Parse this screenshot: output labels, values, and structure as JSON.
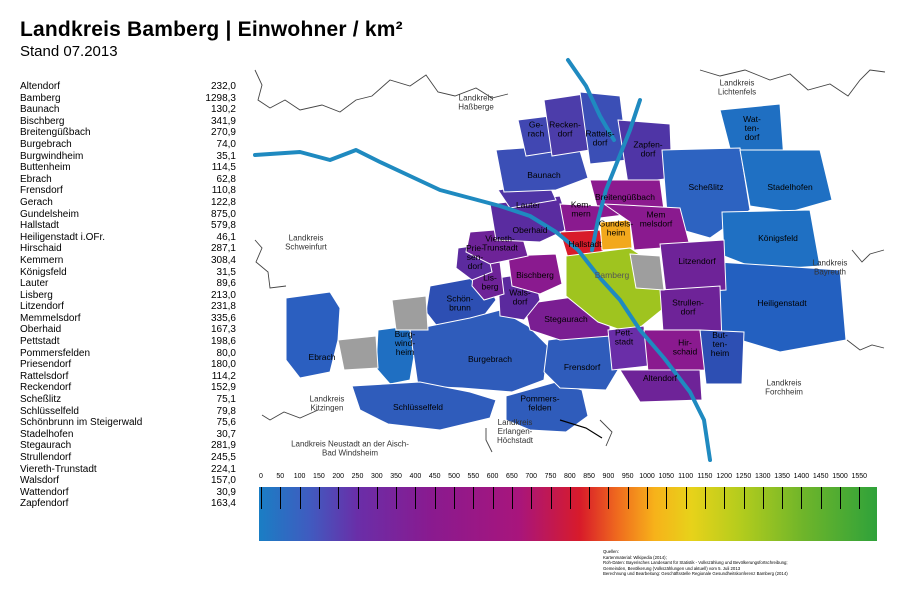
{
  "title": "Landkreis Bamberg  |  Einwohner / km²",
  "subtitle": "Stand 07.2013",
  "municipalities": [
    {
      "name": "Altendorf",
      "value": "232,0"
    },
    {
      "name": "Bamberg",
      "value": "1298,3"
    },
    {
      "name": "Baunach",
      "value": "130,2"
    },
    {
      "name": "Bischberg",
      "value": "341,9"
    },
    {
      "name": "Breitengüßbach",
      "value": "270,9"
    },
    {
      "name": "Burgebrach",
      "value": "74,0"
    },
    {
      "name": "Burgwindheim",
      "value": "35,1"
    },
    {
      "name": "Buttenheim",
      "value": "114,5"
    },
    {
      "name": "Ebrach",
      "value": "62,8"
    },
    {
      "name": "Frensdorf",
      "value": "110,8"
    },
    {
      "name": "Gerach",
      "value": "122,8"
    },
    {
      "name": "Gundelsheim",
      "value": "875,0"
    },
    {
      "name": "Hallstadt",
      "value": "579,8"
    },
    {
      "name": "Heiligenstadt i.OFr.",
      "value": "46,1"
    },
    {
      "name": "Hirschaid",
      "value": "287,1"
    },
    {
      "name": "Kemmern",
      "value": "308,4"
    },
    {
      "name": "Königsfeld",
      "value": "31,5"
    },
    {
      "name": "Lauter",
      "value": "89,6"
    },
    {
      "name": "Lisberg",
      "value": "213,0"
    },
    {
      "name": "Litzendorf",
      "value": "231,8"
    },
    {
      "name": "Memmelsdorf",
      "value": "335,6"
    },
    {
      "name": "Oberhaid",
      "value": "167,3"
    },
    {
      "name": "Pettstadt",
      "value": "198,6"
    },
    {
      "name": "Pommersfelden",
      "value": "80,0"
    },
    {
      "name": "Priesendorf",
      "value": "180,0"
    },
    {
      "name": "Rattelsdorf",
      "value": "114,2"
    },
    {
      "name": "Reckendorf",
      "value": "152,9"
    },
    {
      "name": "Scheßlitz",
      "value": "75,1"
    },
    {
      "name": "Schlüsselfeld",
      "value": "79,8"
    },
    {
      "name": "Schönbrunn im Steigerwald",
      "value": "75,6"
    },
    {
      "name": "Stadelhofen",
      "value": "30,7"
    },
    {
      "name": "Stegaurach",
      "value": "281,9"
    },
    {
      "name": "Strullendorf",
      "value": "245,5"
    },
    {
      "name": "Viereth-Trunstadt",
      "value": "224,1"
    },
    {
      "name": "Walsdorf",
      "value": "157,0"
    },
    {
      "name": "Wattendorf",
      "value": "30,9"
    },
    {
      "name": "Zapfendorf",
      "value": "163,4"
    }
  ],
  "map_labels": {
    "gerach": "Ge-\nrach",
    "reckendorf": "Recken-\ndorf",
    "rattelsdorf": "Rattels-\ndorf",
    "zapfendorf": "Zapfen-\ndorf",
    "wattendorf": "Wat-\nten-\ndorf",
    "baunach": "Baunach",
    "schesslitz": "Scheßlitz",
    "stadelhofen": "Stadelhofen",
    "breitenguessbach": "Breitengüßbach",
    "lauter": "Lauter",
    "kemmern": "Kem-\nmern",
    "memmelsdorf": "Mem\nmelsdorf",
    "oberhaid": "Oberhaid",
    "hallstadt": "Hallstadt",
    "gundelsheim": "Gundels-\nheim",
    "koenigsfeld": "Königsfeld",
    "viereth": "Viereth-\nTrunstadt",
    "litzendorf": "Litzendorf",
    "priesendorf": "Prie-\nsen-\ndorf",
    "bischberg": "Bischberg",
    "bamberg": "Bamberg",
    "lisberg": "Lis-\nberg",
    "walsdorf": "Wals-\ndorf",
    "schoenbrunn": "Schön-\nbrunn",
    "stegaurach": "Stegaurach",
    "strullendorf": "Strullen-\ndorf",
    "heiligenstadt": "Heiligenstadt",
    "pettstadt": "Pett-\nstadt",
    "ebrach": "Ebrach",
    "burgwindheim": "Burg-\nwind-\nheim",
    "burgebrach": "Burgebrach",
    "hirschaid": "Hir-\nschaid",
    "buttenheim": "But-\nten-\nheim",
    "frensdorf": "Frensdorf",
    "altendorf": "Altendorf",
    "schluesselfeld": "Schlüsselfeld",
    "pommersfelden": "Pommers-\nfelden"
  },
  "neighbor_labels": {
    "hassberge": "Landkreis\nHaßberge",
    "lichtenfels": "Landkreis\nLichtenfels",
    "schweinfurt": "Landkreis\nSchweinfurt",
    "bayreuth": "Landkreis\nBayreuth",
    "kitzingen": "Landkreis\nKitzingen",
    "forchheim": "Landkreis\nForchheim",
    "erlangen": "Landkreis\nErlangen-\nHöchstadt",
    "neustadt": "Landkreis Neustadt an der Aisch-\nBad Windsheim"
  },
  "scale_ticks": [
    "0",
    "50",
    "100",
    "150",
    "200",
    "250",
    "300",
    "350",
    "400",
    "450",
    "500",
    "550",
    "600",
    "650",
    "700",
    "750",
    "800",
    "850",
    "900",
    "950",
    "1000",
    "1050",
    "1100",
    "1150",
    "1200",
    "1250",
    "1300",
    "1350",
    "1400",
    "1450",
    "1500",
    "1550"
  ],
  "sources": [
    "Quellen:",
    "Kartenmaterial: Wikipedia (2014);",
    "Roh-Daten: Bayerisches Landesamt für Statistik - Volkszählung und Bevölkerungsfortschreibung;",
    "Gemeinden, Bevölkerung (Volkszählungen und aktuell) vom 5. Juli 2013",
    "Berechnung und Bearbeitung: Geschäftsstelle Regionale Gesundheitskonferenz Bamberg (2014)"
  ],
  "colors": {
    "river": "#1f8ac0",
    "low": "#1f6fc2",
    "mid_low": "#3d4fb8",
    "mid": "#6a2ea8",
    "mid_high": "#8c1a8f",
    "high": "#d81b2a",
    "orange": "#f2a81c",
    "bamberg": "#9fc41f",
    "unincorporated": "#9e9e9e"
  }
}
